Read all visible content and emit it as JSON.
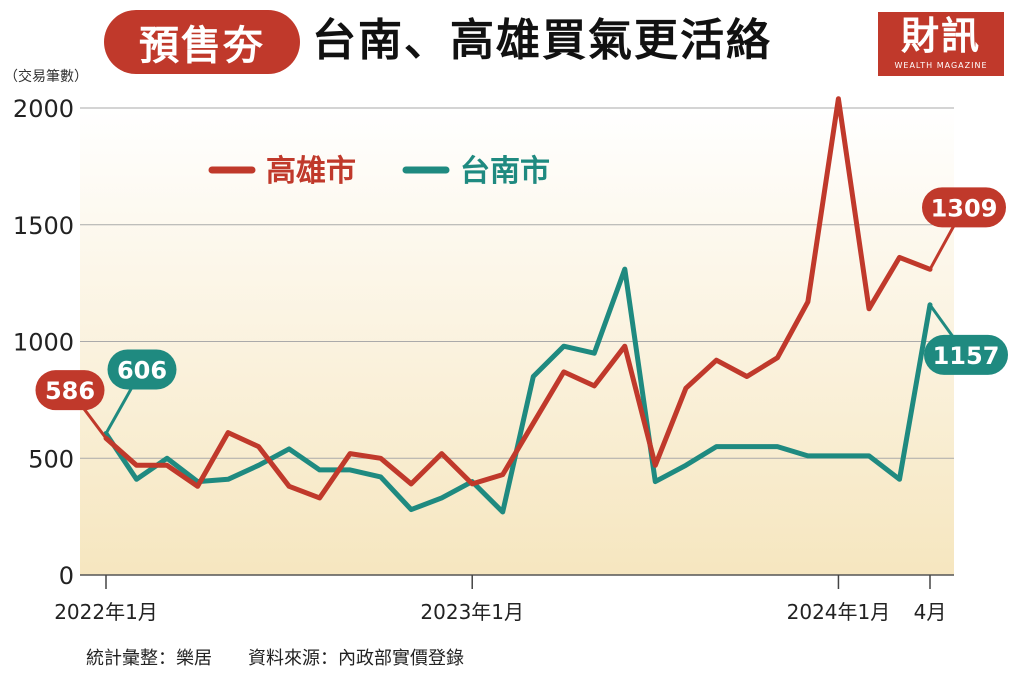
{
  "header": {
    "tag": "預售夯",
    "title": "台南、高雄買氣更活絡"
  },
  "logo": {
    "main": "財訊",
    "sub": "WEALTH MAGAZINE"
  },
  "footer": {
    "source": "統計彙整：樂居　　資料來源：內政部實價登錄"
  },
  "colors": {
    "kaohsiung": "#c0392b",
    "tainan": "#1f8a80",
    "title_pill": "#c0392b",
    "background_gradient_top": "#ffffff",
    "background_gradient_bottom": "#f6e6bf"
  },
  "chart_data": {
    "type": "line",
    "ylabel": "（交易筆數）",
    "ylim": [
      0,
      2000
    ],
    "yticks": [
      0,
      500,
      1000,
      1500,
      2000
    ],
    "x_tick_labels": [
      {
        "index": 0,
        "label": "2022年1月"
      },
      {
        "index": 12,
        "label": "2023年1月"
      },
      {
        "index": 24,
        "label": "2024年1月"
      },
      {
        "index": 27,
        "label": "4月"
      }
    ],
    "legend": {
      "position": "top-left"
    },
    "grid": true,
    "series": [
      {
        "name": "高雄市",
        "color": "#c0392b",
        "values": [
          586,
          470,
          470,
          380,
          610,
          550,
          380,
          330,
          520,
          500,
          390,
          520,
          390,
          430,
          650,
          870,
          810,
          980,
          470,
          800,
          920,
          850,
          930,
          1170,
          2040,
          1140,
          1360,
          1309
        ],
        "labels": [
          {
            "index": 0,
            "text": "586"
          },
          {
            "index": 27,
            "text": "1309"
          }
        ]
      },
      {
        "name": "台南市",
        "color": "#1f8a80",
        "values": [
          606,
          410,
          500,
          400,
          410,
          470,
          540,
          450,
          450,
          420,
          280,
          330,
          400,
          270,
          850,
          980,
          950,
          1310,
          400,
          470,
          550,
          550,
          550,
          510,
          510,
          510,
          410,
          1157
        ],
        "labels": [
          {
            "index": 0,
            "text": "606"
          },
          {
            "index": 27,
            "text": "1157"
          }
        ]
      }
    ]
  }
}
